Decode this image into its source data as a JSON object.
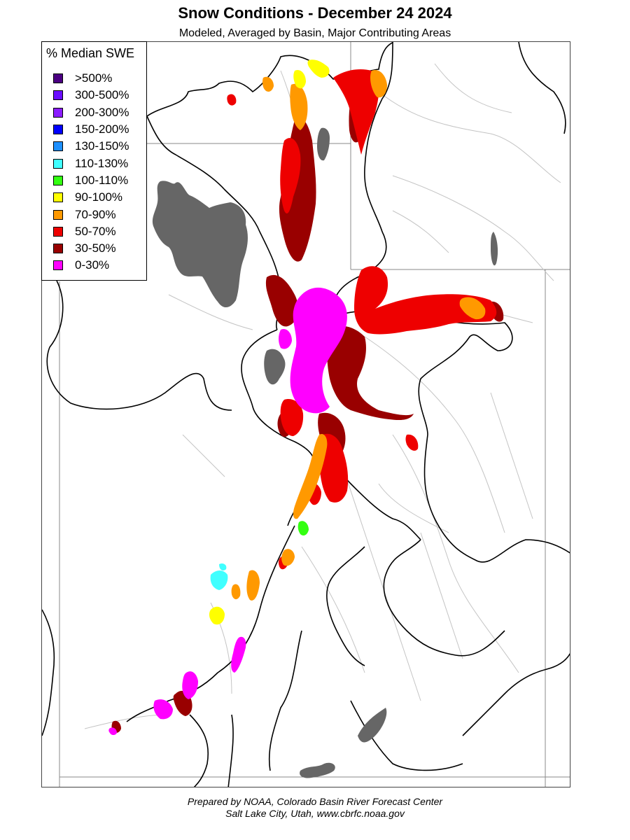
{
  "title": "Snow Conditions - December 24 2024",
  "subtitle": "Modeled, Averaged by Basin, Major Contributing Areas",
  "legend": {
    "title": "% Median SWE",
    "items": [
      {
        "label": ">500%",
        "color": "#4b0082"
      },
      {
        "label": "300-500%",
        "color": "#6a0dff"
      },
      {
        "label": "200-300%",
        "color": "#8b1cff"
      },
      {
        "label": "150-200%",
        "color": "#0000ff"
      },
      {
        "label": "130-150%",
        "color": "#1e90ff"
      },
      {
        "label": "110-130%",
        "color": "#40ffff"
      },
      {
        "label": "100-110%",
        "color": "#33ff11"
      },
      {
        "label": "90-100%",
        "color": "#ffff00"
      },
      {
        "label": "70-90%",
        "color": "#ff9900"
      },
      {
        "label": "50-70%",
        "color": "#ee0000"
      },
      {
        "label": "30-50%",
        "color": "#990000"
      },
      {
        "label": "0-30%",
        "color": "#ff00ff"
      }
    ]
  },
  "map": {
    "lake_color": "#666666",
    "boundary_color": "#000000",
    "river_color": "#bbbbbb"
  },
  "footer": {
    "line1": "Prepared by NOAA, Colorado Basin River Forecast Center",
    "line2": "Salt Lake City, Utah, www.cbrfc.noaa.gov"
  }
}
